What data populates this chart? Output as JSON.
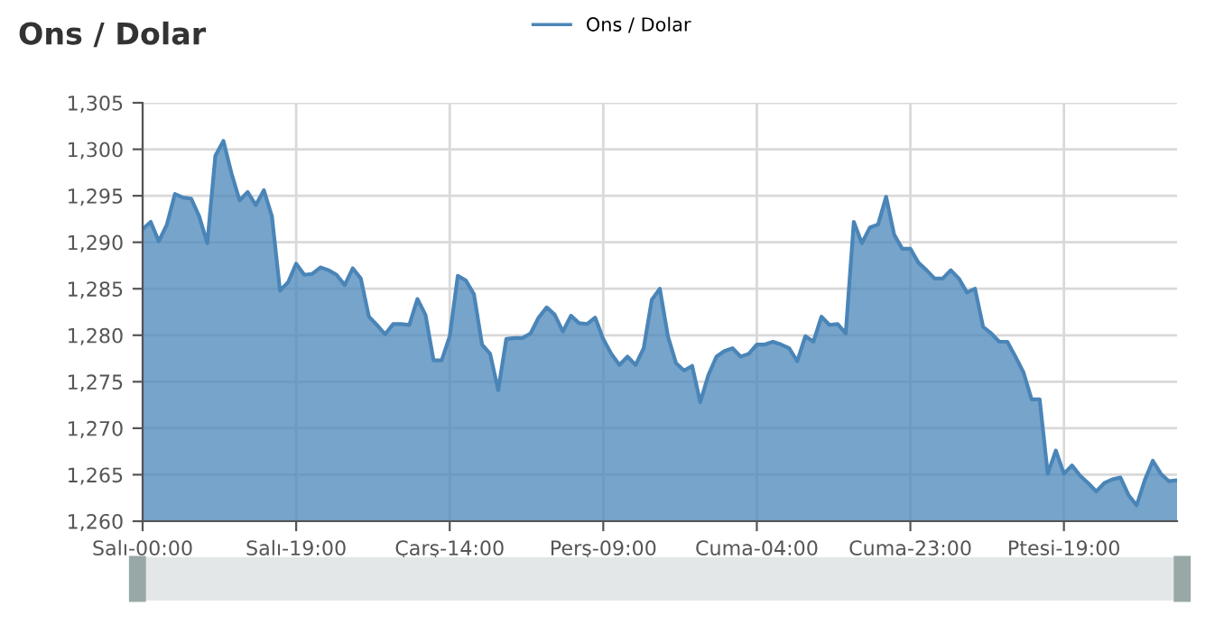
{
  "chart_data": {
    "type": "area",
    "title": "Ons / Dolar",
    "categories": [
      "Salı-00:00",
      null,
      null,
      null,
      null,
      null,
      null,
      null,
      null,
      null,
      null,
      null,
      null,
      null,
      null,
      null,
      null,
      null,
      null,
      "Salı-19:00",
      null,
      null,
      null,
      null,
      null,
      null,
      null,
      null,
      null,
      null,
      null,
      null,
      null,
      null,
      null,
      null,
      null,
      null,
      "Çarş-14:00",
      null,
      null,
      null,
      null,
      null,
      null,
      null,
      null,
      null,
      null,
      null,
      null,
      null,
      null,
      null,
      null,
      null,
      null,
      "Perş-09:00",
      null,
      null,
      null,
      null,
      null,
      null,
      null,
      null,
      null,
      null,
      null,
      null,
      null,
      null,
      null,
      null,
      null,
      null,
      "Cuma-04:00",
      null,
      null,
      null,
      null,
      null,
      null,
      null,
      null,
      null,
      null,
      null,
      null,
      null,
      null,
      null,
      null,
      null,
      null,
      "Cuma-23:00",
      null,
      null,
      null,
      null,
      null,
      null,
      null,
      null,
      null,
      null,
      null,
      null,
      null,
      null,
      null,
      null,
      null,
      null,
      "Ptesi-19:00",
      null,
      null,
      null,
      null,
      null,
      null,
      null,
      null,
      null,
      null,
      null,
      null,
      null,
      null
    ],
    "series": [
      {
        "name": "Ons / Dolar",
        "color": "#4a85b8",
        "values": [
          1291.4,
          1292.2,
          1290.1,
          1291.9,
          1295.2,
          1294.8,
          1294.7,
          1292.8,
          1289.9,
          1299.3,
          1300.9,
          1297.4,
          1294.5,
          1295.4,
          1294.0,
          1295.6,
          1292.8,
          1284.8,
          1285.7,
          1287.7,
          1286.5,
          1286.6,
          1287.3,
          1287.0,
          1286.5,
          1285.4,
          1287.2,
          1286.1,
          1282.0,
          1281.1,
          1280.1,
          1281.2,
          1281.2,
          1281.1,
          1283.9,
          1282.2,
          1277.3,
          1277.3,
          1279.9,
          1286.4,
          1285.9,
          1284.4,
          1279.0,
          1278.0,
          1274.1,
          1279.6,
          1279.7,
          1279.7,
          1280.2,
          1281.9,
          1283.0,
          1282.2,
          1280.4,
          1282.1,
          1281.3,
          1281.2,
          1281.9,
          1279.6,
          1278.0,
          1276.8,
          1277.7,
          1276.8,
          1278.6,
          1283.8,
          1285.0,
          1279.9,
          1277.0,
          1276.2,
          1276.7,
          1272.8,
          1275.7,
          1277.7,
          1278.3,
          1278.6,
          1277.7,
          1278.0,
          1279.0,
          1279.0,
          1279.3,
          1279.0,
          1278.6,
          1277.2,
          1279.9,
          1279.3,
          1282.0,
          1281.1,
          1281.2,
          1280.2,
          1292.2,
          1289.9,
          1291.6,
          1291.9,
          1294.9,
          1290.8,
          1289.3,
          1289.3,
          1287.8,
          1287.0,
          1286.1,
          1286.1,
          1287.0,
          1286.1,
          1284.6,
          1285.0,
          1280.9,
          1280.2,
          1279.3,
          1279.3,
          1277.7,
          1276.0,
          1273.1,
          1273.1,
          1265.1,
          1267.6,
          1265.1,
          1266.0,
          1264.9,
          1264.1,
          1263.2,
          1264.1,
          1264.5,
          1264.7,
          1262.8,
          1261.7,
          1264.4,
          1266.5,
          1265.1,
          1264.3,
          1264.4
        ]
      }
    ],
    "ylim": [
      1260,
      1305
    ],
    "yticks": [
      {
        "value": 1260,
        "label": "1,260"
      },
      {
        "value": 1265,
        "label": "1,265"
      },
      {
        "value": 1270,
        "label": "1,270"
      },
      {
        "value": 1275,
        "label": "1,275"
      },
      {
        "value": 1280,
        "label": "1,280"
      },
      {
        "value": 1285,
        "label": "1,285"
      },
      {
        "value": 1290,
        "label": "1,290"
      },
      {
        "value": 1295,
        "label": "1,295"
      },
      {
        "value": 1300,
        "label": "1,300"
      },
      {
        "value": 1305,
        "label": "1,305"
      }
    ],
    "grid": true,
    "legend": "top",
    "line_style": "solid"
  }
}
